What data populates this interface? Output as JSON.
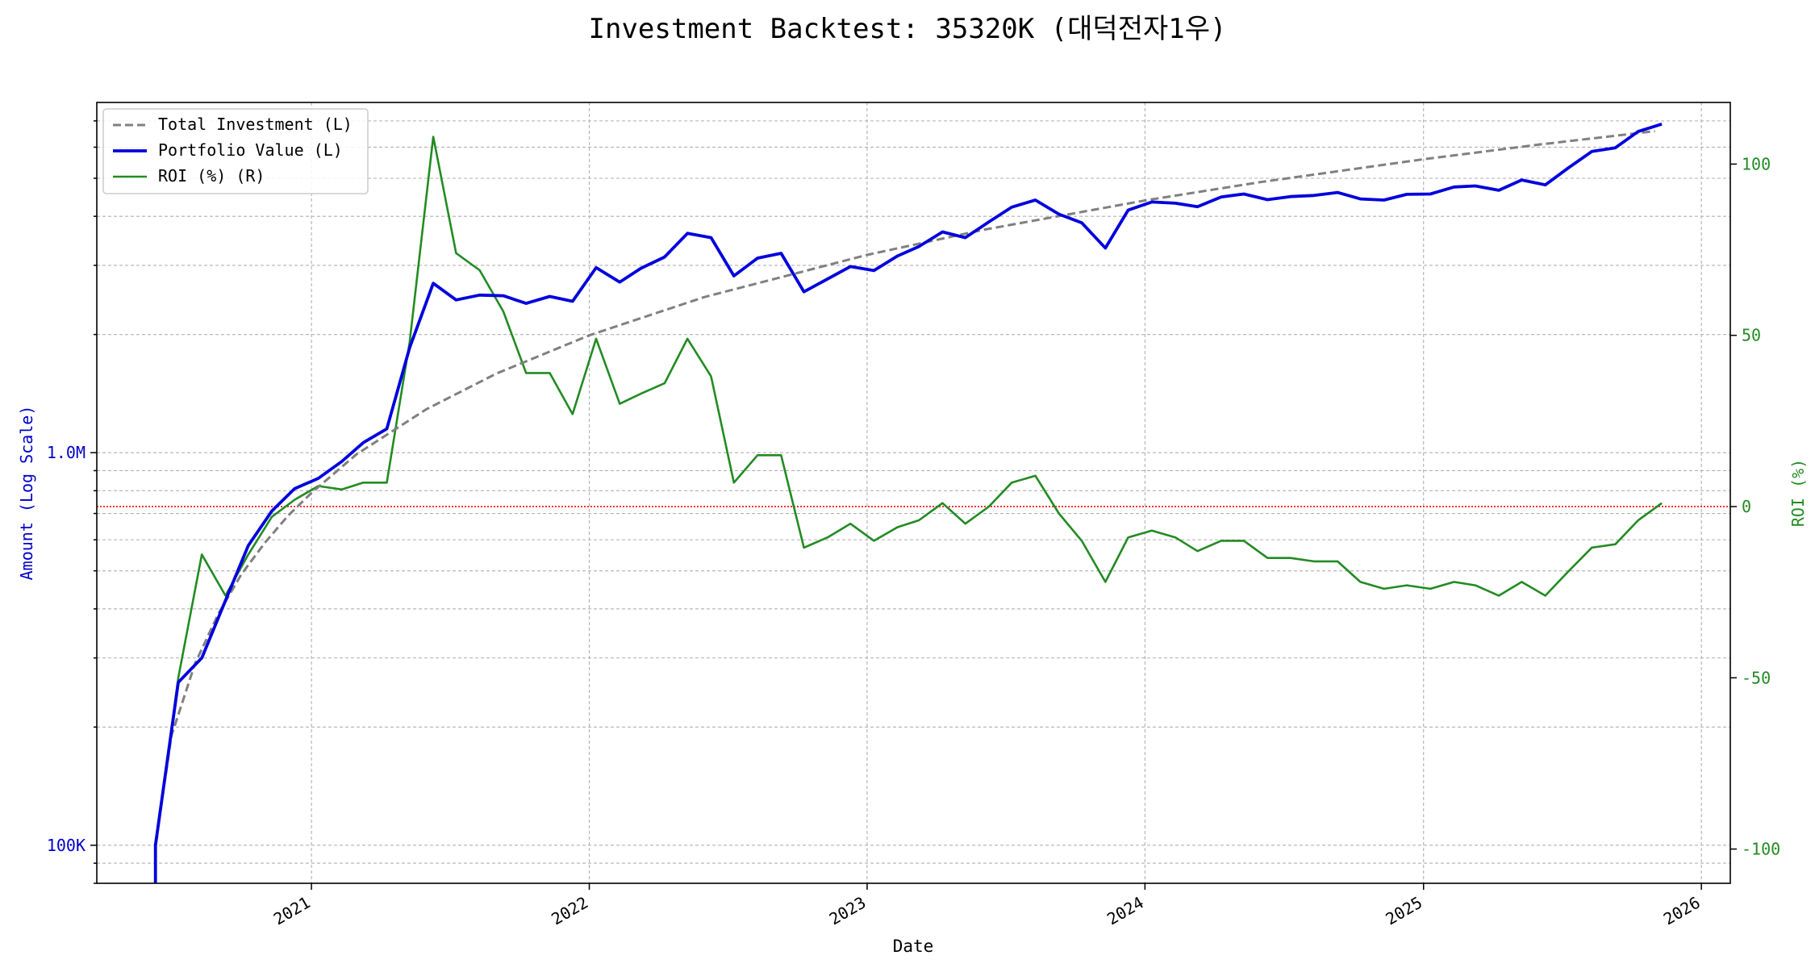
{
  "chart_data": {
    "type": "line",
    "title": "Investment Backtest: 35320K (대덕전자1우)",
    "xlabel": "Date",
    "ylabel_left": "Amount (Log Scale)",
    "ylabel_right": "ROI (%)",
    "left_axis": {
      "scale": "log",
      "ylim": [
        80000,
        7800000
      ],
      "ticks": [
        100000,
        1000000
      ],
      "tick_labels": [
        "100K",
        "1.0M"
      ],
      "color": "#0000cc"
    },
    "right_axis": {
      "ylim": [
        -110,
        118
      ],
      "ticks": [
        -100,
        -50,
        0,
        50,
        100
      ],
      "tick_labels": [
        "-100",
        "-50",
        "0",
        "50",
        "100"
      ],
      "color": "#228b22"
    },
    "x_axis": {
      "xlim": [
        "2020-03-25",
        "2026-02-08"
      ],
      "ticks": [
        "2021-01-01",
        "2022-01-01",
        "2023-01-01",
        "2024-01-01",
        "2025-01-01",
        "2026-01-01"
      ],
      "tick_labels": [
        "2021",
        "2022",
        "2023",
        "2024",
        "2025",
        "2026"
      ]
    },
    "grid": true,
    "legend_position": "top-left",
    "zero_line": {
      "y": 0,
      "axis": "right",
      "color": "#ff0000",
      "style": "dotted"
    },
    "series": [
      {
        "name": "Total Investment (L)",
        "axis": "left",
        "color": "#808080",
        "style": "dashed",
        "x": [
          "2020-06-10",
          "2020-07-01",
          "2020-08-01",
          "2020-09-01",
          "2020-10-01",
          "2020-11-01",
          "2020-12-01",
          "2021-01-01",
          "2021-03-01",
          "2021-06-01",
          "2021-09-01",
          "2022-01-01",
          "2022-06-01",
          "2023-01-01",
          "2023-06-01",
          "2024-01-01",
          "2024-06-01",
          "2025-01-01",
          "2025-06-01",
          "2025-11-01"
        ],
        "values": [
          100000,
          190000,
          290000,
          390000,
          490000,
          590000,
          690000,
          790000,
          990000,
          1290000,
          1590000,
          1990000,
          2490000,
          3190000,
          3690000,
          4390000,
          4890000,
          5590000,
          6090000,
          6590000
        ]
      },
      {
        "name": "Portfolio Value (L)",
        "axis": "left",
        "color": "#0000dd",
        "style": "solid",
        "x": [
          "2020-06-10",
          "2020-06-10",
          "2020-07-10",
          "2020-08-10",
          "2020-09-10",
          "2020-10-10",
          "2020-11-10",
          "2020-12-10",
          "2021-01-10",
          "2021-02-10",
          "2021-03-10",
          "2021-04-10",
          "2021-05-10",
          "2021-06-10",
          "2021-07-10",
          "2021-08-10",
          "2021-09-10",
          "2021-10-10",
          "2021-11-10",
          "2021-12-10",
          "2022-01-10",
          "2022-02-10",
          "2022-03-10",
          "2022-04-10",
          "2022-05-10",
          "2022-06-10",
          "2022-07-10",
          "2022-08-10",
          "2022-09-10",
          "2022-10-10",
          "2022-11-10",
          "2022-12-10",
          "2023-01-10",
          "2023-02-10",
          "2023-03-10",
          "2023-04-10",
          "2023-05-10",
          "2023-06-10",
          "2023-07-10",
          "2023-08-10",
          "2023-09-10",
          "2023-10-10",
          "2023-11-10",
          "2023-12-10",
          "2024-01-10",
          "2024-02-10",
          "2024-03-10",
          "2024-04-10",
          "2024-05-10",
          "2024-06-10",
          "2024-07-10",
          "2024-08-10",
          "2024-09-10",
          "2024-10-10",
          "2024-11-10",
          "2024-12-10",
          "2025-01-10",
          "2025-02-10",
          "2025-03-10",
          "2025-04-10",
          "2025-05-10",
          "2025-06-10",
          "2025-07-10",
          "2025-08-10",
          "2025-09-10",
          "2025-10-10",
          "2025-11-10"
        ],
        "values": [
          80000,
          100000,
          260000,
          300000,
          420000,
          580000,
          710000,
          810000,
          860000,
          950000,
          1060000,
          1150000,
          1850000,
          2700000,
          2450000,
          2520000,
          2510000,
          2400000,
          2500000,
          2430000,
          2960000,
          2720000,
          2950000,
          3150000,
          3620000,
          3530000,
          2820000,
          3130000,
          3220000,
          2570000,
          2770000,
          2980000,
          2910000,
          3170000,
          3350000,
          3650000,
          3530000,
          3870000,
          4220000,
          4400000,
          4050000,
          3850000,
          3320000,
          4150000,
          4350000,
          4320000,
          4230000,
          4480000,
          4560000,
          4410000,
          4490000,
          4520000,
          4600000,
          4430000,
          4400000,
          4550000,
          4560000,
          4750000,
          4780000,
          4660000,
          4950000,
          4810000,
          5310000,
          5850000,
          5980000,
          6580000,
          6870000
        ]
      },
      {
        "name": "ROI (%) (R)",
        "axis": "right",
        "color": "#228b22",
        "style": "solid",
        "x": [
          "2020-06-10",
          "2020-07-10",
          "2020-08-10",
          "2020-09-10",
          "2020-10-10",
          "2020-11-10",
          "2020-12-10",
          "2021-01-10",
          "2021-02-10",
          "2021-03-10",
          "2021-04-10",
          "2021-05-10",
          "2021-06-10",
          "2021-07-10",
          "2021-08-10",
          "2021-09-10",
          "2021-10-10",
          "2021-11-10",
          "2021-12-10",
          "2022-01-10",
          "2022-02-10",
          "2022-03-10",
          "2022-04-10",
          "2022-05-10",
          "2022-06-10",
          "2022-07-10",
          "2022-08-10",
          "2022-09-10",
          "2022-10-10",
          "2022-11-10",
          "2022-12-10",
          "2023-01-10",
          "2023-02-10",
          "2023-03-10",
          "2023-04-10",
          "2023-05-10",
          "2023-06-10",
          "2023-07-10",
          "2023-08-10",
          "2023-09-10",
          "2023-10-10",
          "2023-11-10",
          "2023-12-10",
          "2024-01-10",
          "2024-02-10",
          "2024-03-10",
          "2024-04-10",
          "2024-05-10",
          "2024-06-10",
          "2024-07-10",
          "2024-08-10",
          "2024-09-10",
          "2024-10-10",
          "2024-11-10",
          "2024-12-10",
          "2025-01-10",
          "2025-02-10",
          "2025-03-10",
          "2025-04-10",
          "2025-05-10",
          "2025-06-10",
          "2025-07-10",
          "2025-08-10",
          "2025-09-10",
          "2025-10-10",
          "2025-11-10"
        ],
        "values": [
          -100,
          -50,
          -14,
          -26,
          -14,
          -3,
          2,
          6,
          5,
          7,
          7,
          48,
          108,
          74,
          69,
          57,
          39,
          39,
          27,
          49,
          30,
          33,
          36,
          49,
          38,
          7,
          15,
          15,
          -12,
          -9,
          -5,
          -10,
          -6,
          -4,
          1,
          -5,
          0,
          7,
          9,
          -2,
          -10,
          -22,
          -9,
          -7,
          -9,
          -13,
          -10,
          -10,
          -15,
          -15,
          -16,
          -16,
          -22,
          -24,
          -23,
          -24,
          -22,
          -23,
          -26,
          -22,
          -26,
          -19,
          -12,
          -11,
          -4,
          1
        ]
      }
    ]
  }
}
